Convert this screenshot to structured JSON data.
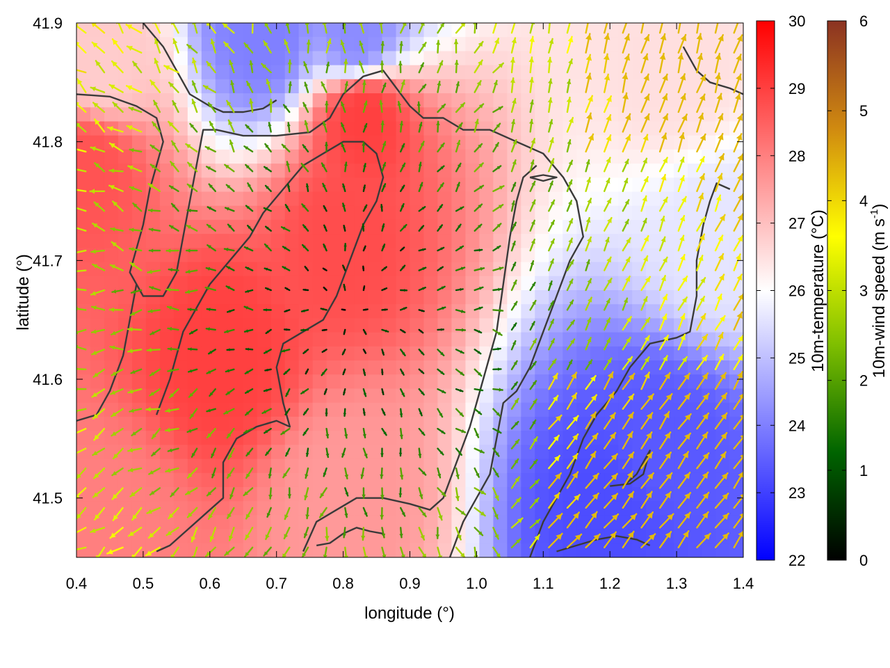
{
  "chart_data": {
    "type": "heatmap",
    "subtype": "temperature field with wind vector arrows and contour lines",
    "xlabel": "longitude (°)",
    "ylabel": "latitude (°)",
    "xlim": [
      0.4,
      1.4
    ],
    "ylim": [
      41.45,
      41.9
    ],
    "x_ticks": [
      "0.4",
      "0.5",
      "0.6",
      "0.7",
      "0.8",
      "0.9",
      "1.0",
      "1.1",
      "1.2",
      "1.3",
      "1.4"
    ],
    "y_ticks": [
      "41.5",
      "41.6",
      "41.7",
      "41.8",
      "41.9"
    ],
    "grid": false,
    "colorbars": [
      {
        "name": "temperature",
        "label": "10m-temperature (°C)",
        "range": [
          22,
          30
        ],
        "ticks": [
          "22",
          "23",
          "24",
          "25",
          "26",
          "27",
          "28",
          "29",
          "30"
        ],
        "colors": [
          "#0000ff",
          "#ffffff",
          "#ff0000"
        ]
      },
      {
        "name": "wind",
        "label": "10m-wind speed (m s",
        "label_superscript": "-1",
        "label_suffix": ")",
        "range": [
          0,
          6
        ],
        "ticks": [
          "0",
          "1",
          "2",
          "3",
          "4",
          "5",
          "6"
        ],
        "colors": [
          "#000000",
          "#006400",
          "#7fbf00",
          "#ffff00",
          "#d08a10",
          "#8b3222"
        ]
      }
    ],
    "temperature_features": [
      {
        "region": "center",
        "lon": 0.8,
        "lat": 41.72,
        "value": 28.8
      },
      {
        "region": "north-center",
        "lon": 0.83,
        "lat": 41.82,
        "value": 29.0
      },
      {
        "region": "west",
        "lon": 0.42,
        "lat": 41.78,
        "value": 28.7
      },
      {
        "region": "west-center",
        "lon": 0.62,
        "lat": 41.62,
        "value": 29.0
      },
      {
        "region": "north-west",
        "lon": 0.44,
        "lat": 41.86,
        "value": 26.8
      },
      {
        "region": "north",
        "lon": 0.68,
        "lat": 41.89,
        "value": 24.0
      },
      {
        "region": "north-center-top",
        "lon": 0.82,
        "lat": 41.89,
        "value": 24.2
      },
      {
        "region": "north-east",
        "lon": 1.3,
        "lat": 41.86,
        "value": 26.5
      },
      {
        "region": "east",
        "lon": 1.36,
        "lat": 41.72,
        "value": 25.6
      },
      {
        "region": "south-east",
        "lon": 1.28,
        "lat": 41.54,
        "value": 23.4
      },
      {
        "region": "south-east-bottom",
        "lon": 1.2,
        "lat": 41.49,
        "value": 23.2
      },
      {
        "region": "south",
        "lon": 0.8,
        "lat": 41.5,
        "value": 27.6
      },
      {
        "region": "south-west",
        "lon": 0.45,
        "lat": 41.47,
        "value": 28.0
      }
    ],
    "wind_pattern": "divergent outflow from central low-speed region; stronger northward winds (3-4 m/s) in south-east and north-east",
    "contours": [
      [
        [
          0.4,
          41.84
        ],
        [
          0.45,
          41.838
        ],
        [
          0.49,
          41.83
        ],
        [
          0.52,
          41.82
        ],
        [
          0.53,
          41.8
        ],
        [
          0.52,
          41.78
        ],
        [
          0.51,
          41.76
        ],
        [
          0.5,
          41.73
        ],
        [
          0.49,
          41.71
        ],
        [
          0.48,
          41.69
        ],
        [
          0.5,
          41.67
        ],
        [
          0.53,
          41.67
        ],
        [
          0.55,
          41.69
        ],
        [
          0.56,
          41.72
        ],
        [
          0.57,
          41.75
        ],
        [
          0.58,
          41.78
        ],
        [
          0.59,
          41.81
        ],
        [
          0.61,
          41.81
        ],
        [
          0.65,
          41.805
        ],
        [
          0.7,
          41.805
        ],
        [
          0.75,
          41.808
        ],
        [
          0.78,
          41.82
        ],
        [
          0.8,
          41.84
        ],
        [
          0.83,
          41.855
        ],
        [
          0.86,
          41.86
        ],
        [
          0.88,
          41.845
        ],
        [
          0.9,
          41.83
        ],
        [
          0.92,
          41.82
        ],
        [
          0.95,
          41.82
        ],
        [
          0.98,
          41.81
        ],
        [
          1.02,
          41.81
        ],
        [
          1.06,
          41.8
        ],
        [
          1.1,
          41.79
        ],
        [
          1.13,
          41.77
        ],
        [
          1.15,
          41.75
        ],
        [
          1.16,
          41.72
        ],
        [
          1.14,
          41.7
        ],
        [
          1.12,
          41.67
        ],
        [
          1.1,
          41.64
        ],
        [
          1.08,
          41.61
        ],
        [
          1.06,
          41.59
        ],
        [
          1.04,
          41.58
        ],
        [
          1.03,
          41.55
        ],
        [
          1.02,
          41.52
        ],
        [
          1.0,
          41.5
        ],
        [
          0.98,
          41.48
        ],
        [
          0.96,
          41.45
        ]
      ],
      [
        [
          0.4,
          41.565
        ],
        [
          0.43,
          41.57
        ],
        [
          0.45,
          41.59
        ],
        [
          0.47,
          41.62
        ],
        [
          0.48,
          41.65
        ],
        [
          0.49,
          41.68
        ]
      ],
      [
        [
          0.52,
          41.455
        ],
        [
          0.54,
          41.46
        ],
        [
          0.56,
          41.47
        ],
        [
          0.58,
          41.48
        ],
        [
          0.6,
          41.49
        ],
        [
          0.62,
          41.5
        ],
        [
          0.62,
          41.53
        ],
        [
          0.64,
          41.55
        ],
        [
          0.67,
          41.56
        ],
        [
          0.7,
          41.565
        ],
        [
          0.72,
          41.56
        ],
        [
          0.71,
          41.58
        ],
        [
          0.7,
          41.61
        ],
        [
          0.71,
          41.63
        ],
        [
          0.74,
          41.64
        ],
        [
          0.77,
          41.65
        ],
        [
          0.79,
          41.67
        ],
        [
          0.81,
          41.7
        ],
        [
          0.83,
          41.73
        ],
        [
          0.85,
          41.75
        ],
        [
          0.86,
          41.77
        ],
        [
          0.85,
          41.79
        ],
        [
          0.83,
          41.8
        ],
        [
          0.8,
          41.8
        ],
        [
          0.77,
          41.79
        ],
        [
          0.74,
          41.78
        ],
        [
          0.71,
          41.76
        ],
        [
          0.68,
          41.74
        ],
        [
          0.66,
          41.72
        ],
        [
          0.63,
          41.7
        ],
        [
          0.6,
          41.68
        ],
        [
          0.58,
          41.66
        ],
        [
          0.56,
          41.64
        ],
        [
          0.54,
          41.6
        ],
        [
          0.52,
          41.57
        ]
      ],
      [
        [
          0.74,
          41.455
        ],
        [
          0.76,
          41.48
        ],
        [
          0.79,
          41.49
        ],
        [
          0.82,
          41.5
        ],
        [
          0.86,
          41.5
        ],
        [
          0.9,
          41.495
        ],
        [
          0.93,
          41.49
        ],
        [
          0.95,
          41.5
        ],
        [
          0.97,
          41.53
        ],
        [
          0.99,
          41.56
        ],
        [
          1.01,
          41.6
        ],
        [
          1.03,
          41.64
        ],
        [
          1.04,
          41.68
        ],
        [
          1.05,
          41.72
        ],
        [
          1.06,
          41.75
        ],
        [
          1.07,
          41.77
        ],
        [
          1.09,
          41.78
        ]
      ],
      [
        [
          0.76,
          41.46
        ],
        [
          0.78,
          41.462
        ],
        [
          0.8,
          41.47
        ],
        [
          0.82,
          41.475
        ],
        [
          0.84,
          41.472
        ],
        [
          0.86,
          41.47
        ]
      ],
      [
        [
          1.08,
          41.45
        ],
        [
          1.1,
          41.48
        ],
        [
          1.12,
          41.5
        ],
        [
          1.14,
          41.52
        ],
        [
          1.16,
          41.55
        ],
        [
          1.18,
          41.57
        ],
        [
          1.21,
          41.59
        ],
        [
          1.23,
          41.61
        ],
        [
          1.26,
          41.63
        ],
        [
          1.3,
          41.635
        ],
        [
          1.32,
          41.64
        ],
        [
          1.33,
          41.67
        ],
        [
          1.33,
          41.7
        ],
        [
          1.34,
          41.73
        ],
        [
          1.35,
          41.75
        ],
        [
          1.36,
          41.765
        ],
        [
          1.38,
          41.76
        ]
      ],
      [
        [
          1.12,
          41.455
        ],
        [
          1.15,
          41.46
        ],
        [
          1.18,
          41.465
        ],
        [
          1.21,
          41.468
        ],
        [
          1.24,
          41.465
        ],
        [
          1.26,
          41.46
        ]
      ],
      [
        [
          1.2,
          41.51
        ],
        [
          1.23,
          41.512
        ],
        [
          1.25,
          41.52
        ],
        [
          1.26,
          41.54
        ],
        [
          1.24,
          41.52
        ],
        [
          1.22,
          41.51
        ]
      ],
      [
        [
          1.08,
          41.77
        ],
        [
          1.1,
          41.772
        ],
        [
          1.12,
          41.77
        ],
        [
          1.1,
          41.767
        ],
        [
          1.08,
          41.77
        ]
      ],
      [
        [
          1.31,
          41.88
        ],
        [
          1.33,
          41.86
        ],
        [
          1.35,
          41.85
        ],
        [
          1.38,
          41.845
        ],
        [
          1.4,
          41.84
        ]
      ],
      [
        [
          0.5,
          41.9
        ],
        [
          0.53,
          41.88
        ],
        [
          0.55,
          41.86
        ],
        [
          0.57,
          41.84
        ],
        [
          0.6,
          41.83
        ],
        [
          0.62,
          41.825
        ],
        [
          0.65,
          41.825
        ],
        [
          0.68,
          41.828
        ],
        [
          0.7,
          41.835
        ]
      ]
    ]
  }
}
